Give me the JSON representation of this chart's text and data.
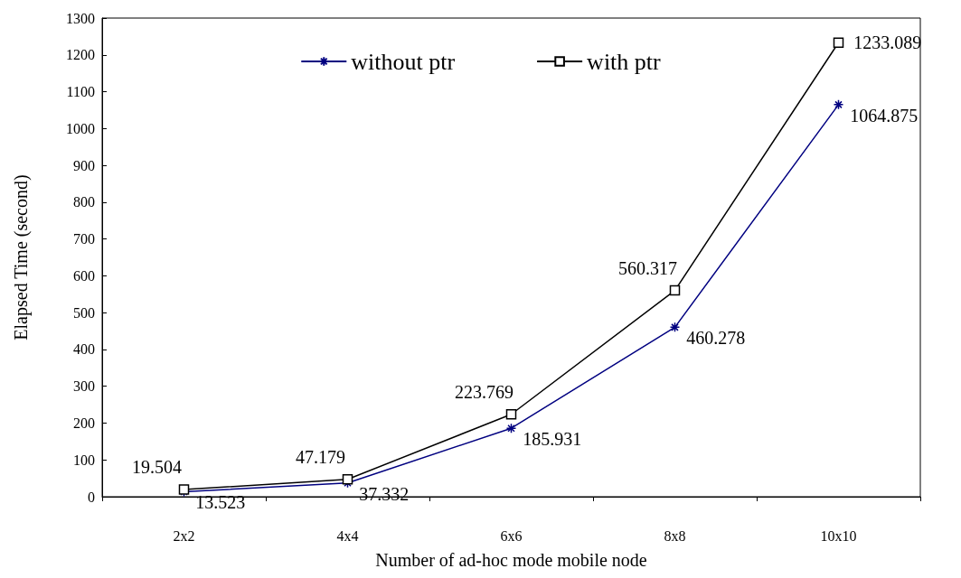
{
  "chart_data": {
    "type": "line",
    "xlabel": "Number of ad-hoc mode mobile node",
    "ylabel": "Elapsed Time (second)",
    "categories": [
      "2x2",
      "4x4",
      "6x6",
      "8x8",
      "10x10"
    ],
    "series": [
      {
        "name": "without ptr",
        "color": "#000080",
        "marker": "cross",
        "values": [
          13.523,
          37.332,
          185.931,
          460.278,
          1064.875
        ]
      },
      {
        "name": "with ptr",
        "color": "#000000",
        "marker": "square",
        "values": [
          19.504,
          47.179,
          223.769,
          560.317,
          1233.089
        ]
      }
    ],
    "ylim": [
      0,
      1300
    ],
    "yticks": [
      0,
      100,
      200,
      300,
      400,
      500,
      600,
      700,
      800,
      900,
      1000,
      1100,
      1200,
      1300
    ],
    "grid": false,
    "legend": "top",
    "data_labels": true,
    "line_style": "solid"
  }
}
